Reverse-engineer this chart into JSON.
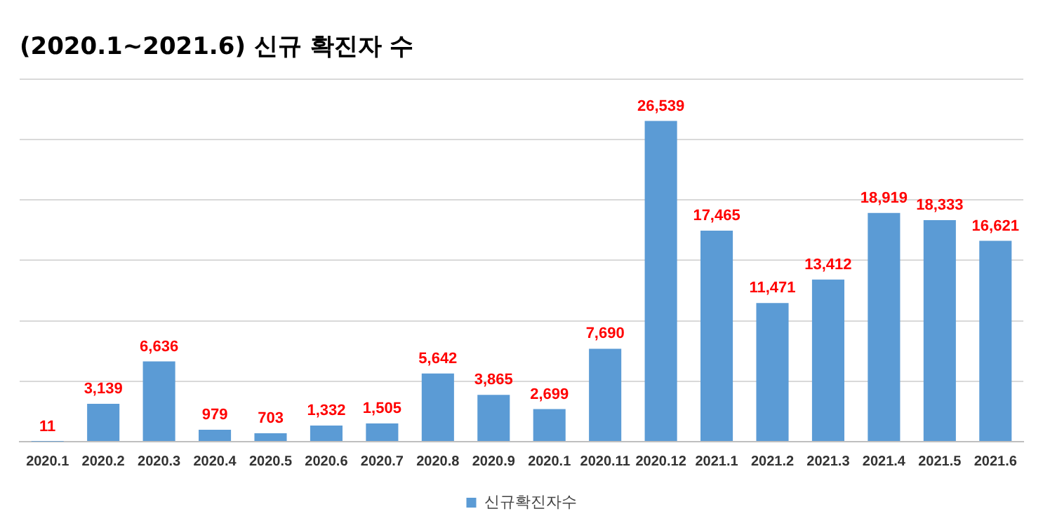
{
  "chart_data": {
    "type": "bar",
    "title": "(2020.1~2021.6) 신규 확진자 수",
    "categories": [
      "2020.1",
      "2020.2",
      "2020.3",
      "2020.4",
      "2020.5",
      "2020.6",
      "2020.7",
      "2020.8",
      "2020.9",
      "2020.1",
      "2020.11",
      "2020.12",
      "2021.1",
      "2021.2",
      "2021.3",
      "2021.4",
      "2021.5",
      "2021.6"
    ],
    "series": [
      {
        "name": "신규확진자수",
        "color": "#5b9bd5",
        "values": [
          11,
          3139,
          6636,
          979,
          703,
          1332,
          1505,
          5642,
          3865,
          2699,
          7690,
          26539,
          17465,
          11471,
          13412,
          18919,
          18333,
          16621
        ],
        "value_labels": [
          "11",
          "3,139",
          "6,636",
          "979",
          "703",
          "1,332",
          "1,505",
          "5,642",
          "3,865",
          "2,699",
          "7,690",
          "26,539",
          "17,465",
          "11,471",
          "13,412",
          "18,919",
          "18,333",
          "16,621"
        ]
      }
    ],
    "ylim": [
      0,
      30000
    ],
    "yticks": [
      {
        "value": 0,
        "label": null
      },
      {
        "value": 5000,
        "label": null
      },
      {
        "value": 10000,
        "label": null
      },
      {
        "value": 15000,
        "label": null
      },
      {
        "value": 20000,
        "label": null
      },
      {
        "value": 25000,
        "label": null
      },
      {
        "value": 30000,
        "label": null
      }
    ],
    "tick_labels": "x",
    "grid": "y",
    "legend": "bottom"
  }
}
